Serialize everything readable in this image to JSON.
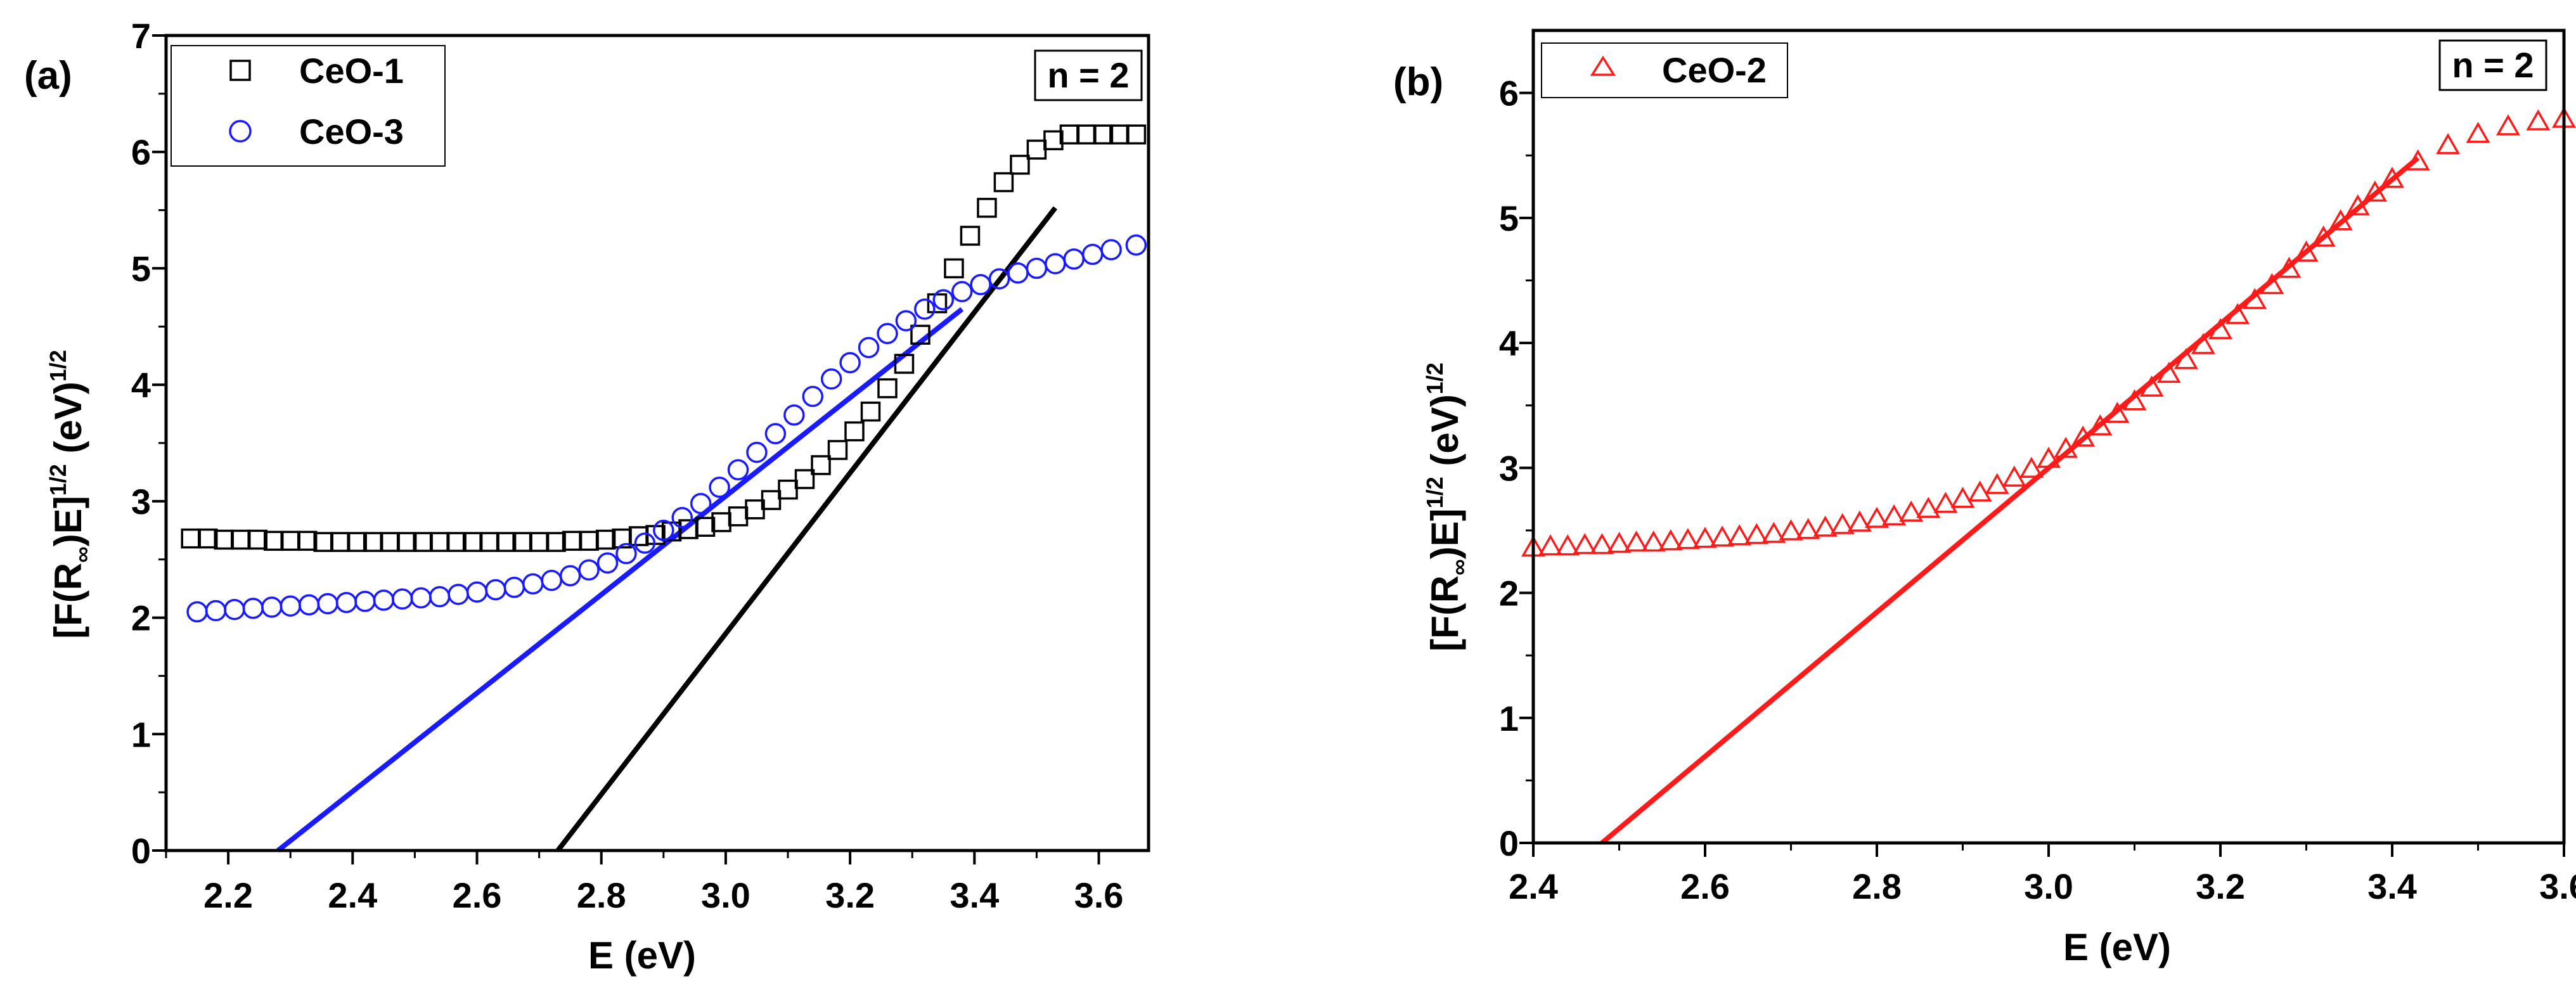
{
  "chart_data": [
    {
      "panel_label": "(a)",
      "type": "scatter",
      "xlabel": "E (eV)",
      "ylabel": {
        "main": "[F(R",
        "sub": "∞",
        "mid": ")E]",
        "sup1": "1/2",
        "unit": " (eV)",
        "sup2": "1/2"
      },
      "xlim": [
        2.1,
        3.68
      ],
      "ylim": [
        0,
        7
      ],
      "xticks": [
        "2.2",
        "2.4",
        "2.6",
        "2.8",
        "3.0",
        "3.2",
        "3.4",
        "3.6"
      ],
      "xtick_values": [
        2.2,
        2.4,
        2.6,
        2.8,
        3.0,
        3.2,
        3.4,
        3.6
      ],
      "yticks": [
        "0",
        "1",
        "2",
        "3",
        "4",
        "5",
        "6",
        "7"
      ],
      "ytick_values": [
        0,
        1,
        2,
        3,
        4,
        5,
        6,
        7
      ],
      "annotation": "n = 2",
      "legend_position": "top-left",
      "series": [
        {
          "name": "CeO-1",
          "marker": "square",
          "color": "#000000",
          "x": [
            2.14,
            2.167,
            2.193,
            2.22,
            2.247,
            2.273,
            2.3,
            2.327,
            2.353,
            2.38,
            2.407,
            2.433,
            2.46,
            2.487,
            2.513,
            2.54,
            2.567,
            2.593,
            2.62,
            2.647,
            2.673,
            2.7,
            2.727,
            2.753,
            2.78,
            2.807,
            2.833,
            2.86,
            2.887,
            2.913,
            2.94,
            2.967,
            2.993,
            3.02,
            3.047,
            3.073,
            3.1,
            3.127,
            3.153,
            3.18,
            3.207,
            3.233,
            3.26,
            3.287,
            3.313,
            3.34,
            3.367,
            3.393,
            3.42,
            3.447,
            3.473,
            3.5,
            3.527,
            3.553,
            3.58,
            3.607,
            3.633,
            3.66
          ],
          "y": [
            2.68,
            2.68,
            2.67,
            2.67,
            2.67,
            2.66,
            2.66,
            2.66,
            2.65,
            2.65,
            2.65,
            2.65,
            2.65,
            2.65,
            2.65,
            2.65,
            2.65,
            2.65,
            2.65,
            2.65,
            2.65,
            2.65,
            2.65,
            2.66,
            2.66,
            2.67,
            2.68,
            2.7,
            2.71,
            2.74,
            2.76,
            2.78,
            2.82,
            2.87,
            2.93,
            3.01,
            3.1,
            3.19,
            3.31,
            3.44,
            3.6,
            3.77,
            3.97,
            4.18,
            4.43,
            4.7,
            5.0,
            5.28,
            5.52,
            5.74,
            5.89,
            6.02,
            6.1,
            6.15,
            6.15,
            6.15,
            6.15,
            6.15
          ]
        },
        {
          "name": "CeO-3",
          "marker": "circle",
          "color": "#1a1aff",
          "x": [
            2.15,
            2.18,
            2.21,
            2.24,
            2.27,
            2.3,
            2.33,
            2.36,
            2.39,
            2.42,
            2.45,
            2.48,
            2.51,
            2.54,
            2.57,
            2.6,
            2.63,
            2.66,
            2.69,
            2.72,
            2.75,
            2.78,
            2.81,
            2.84,
            2.87,
            2.9,
            2.93,
            2.96,
            2.99,
            3.02,
            3.05,
            3.08,
            3.11,
            3.14,
            3.17,
            3.2,
            3.23,
            3.26,
            3.29,
            3.32,
            3.35,
            3.38,
            3.41,
            3.44,
            3.47,
            3.5,
            3.53,
            3.56,
            3.59,
            3.62,
            3.66
          ],
          "y": [
            2.05,
            2.06,
            2.07,
            2.08,
            2.09,
            2.1,
            2.11,
            2.12,
            2.13,
            2.14,
            2.15,
            2.16,
            2.17,
            2.18,
            2.2,
            2.22,
            2.24,
            2.26,
            2.29,
            2.32,
            2.36,
            2.41,
            2.47,
            2.55,
            2.64,
            2.75,
            2.86,
            2.98,
            3.12,
            3.27,
            3.42,
            3.58,
            3.74,
            3.9,
            4.05,
            4.19,
            4.32,
            4.44,
            4.55,
            4.65,
            4.73,
            4.8,
            4.86,
            4.91,
            4.96,
            5.0,
            5.04,
            5.08,
            5.12,
            5.16,
            5.2
          ]
        }
      ],
      "fit_lines": [
        {
          "name": "CeO-1 fit",
          "color": "#000000",
          "x": [
            2.73,
            3.53
          ],
          "y": [
            0,
            5.52
          ]
        },
        {
          "name": "CeO-3 fit",
          "color": "#1a1aff",
          "x": [
            2.28,
            3.38
          ],
          "y": [
            0,
            4.65
          ]
        }
      ]
    },
    {
      "panel_label": "(b)",
      "type": "scatter",
      "xlabel": "E (eV)",
      "ylabel": {
        "main": "[F(R",
        "sub": "∞",
        "mid": ")E]",
        "sup1": "1/2",
        "unit": " (eV)",
        "sup2": "1/2"
      },
      "xlim": [
        2.4,
        3.6
      ],
      "ylim": [
        0,
        6.5
      ],
      "xticks": [
        "2.4",
        "2.6",
        "2.8",
        "3.0",
        "3.2",
        "3.4",
        "3.6"
      ],
      "xtick_values": [
        2.4,
        2.6,
        2.8,
        3.0,
        3.2,
        3.4,
        3.6
      ],
      "yticks": [
        "0",
        "1",
        "2",
        "3",
        "4",
        "5",
        "6"
      ],
      "ytick_values": [
        0,
        1,
        2,
        3,
        4,
        5,
        6
      ],
      "annotation": "n = 2",
      "legend_position": "top-left",
      "series": [
        {
          "name": "CeO-2",
          "marker": "triangle",
          "color": "#ff1a1a",
          "x": [
            2.4,
            2.42,
            2.44,
            2.46,
            2.48,
            2.5,
            2.52,
            2.54,
            2.56,
            2.58,
            2.6,
            2.62,
            2.64,
            2.66,
            2.68,
            2.7,
            2.72,
            2.74,
            2.76,
            2.78,
            2.8,
            2.82,
            2.84,
            2.86,
            2.88,
            2.9,
            2.92,
            2.94,
            2.96,
            2.98,
            3.0,
            3.02,
            3.04,
            3.06,
            3.08,
            3.1,
            3.12,
            3.14,
            3.16,
            3.18,
            3.2,
            3.22,
            3.24,
            3.26,
            3.28,
            3.3,
            3.32,
            3.34,
            3.36,
            3.38,
            3.4,
            3.43,
            3.465,
            3.5,
            3.535,
            3.57,
            3.6
          ],
          "y": [
            2.36,
            2.37,
            2.37,
            2.38,
            2.38,
            2.39,
            2.4,
            2.4,
            2.41,
            2.42,
            2.43,
            2.44,
            2.45,
            2.46,
            2.47,
            2.49,
            2.5,
            2.52,
            2.54,
            2.56,
            2.59,
            2.61,
            2.64,
            2.67,
            2.71,
            2.75,
            2.8,
            2.86,
            2.92,
            2.99,
            3.07,
            3.15,
            3.24,
            3.33,
            3.43,
            3.53,
            3.64,
            3.75,
            3.86,
            3.98,
            4.1,
            4.22,
            4.34,
            4.46,
            4.59,
            4.72,
            4.84,
            4.97,
            5.09,
            5.2,
            5.31,
            5.45,
            5.58,
            5.67,
            5.73,
            5.77,
            5.79
          ]
        }
      ],
      "fit_lines": [
        {
          "name": "CeO-2 fit",
          "color": "#ff1a1a",
          "x": [
            2.48,
            3.43
          ],
          "y": [
            0,
            5.48
          ]
        }
      ]
    }
  ]
}
